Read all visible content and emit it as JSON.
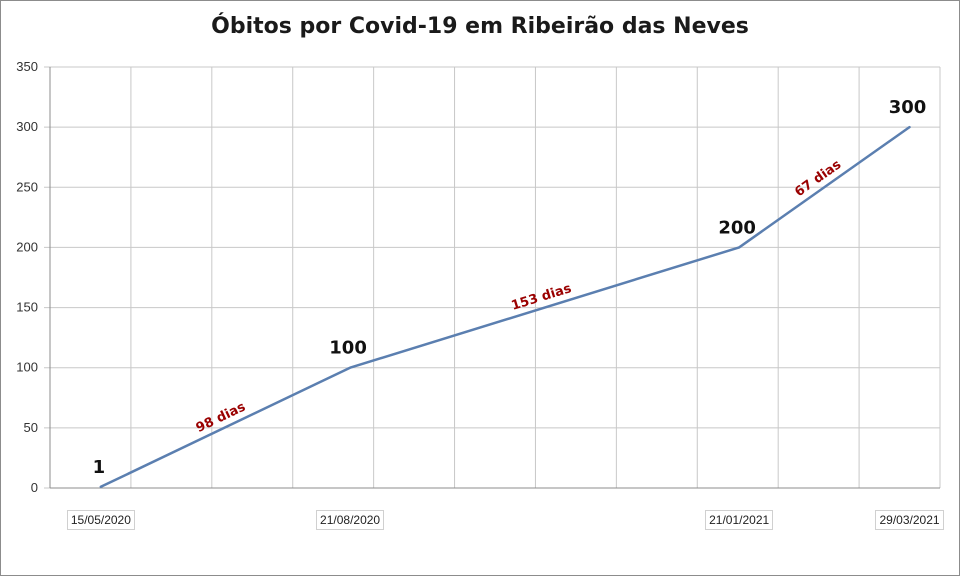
{
  "chart_data": {
    "type": "line",
    "title": "Óbitos por Covid-19 em Ribeirão das Neves",
    "xlabel": "",
    "ylabel": "",
    "ylim": [
      0,
      350
    ],
    "yticks": [
      0,
      50,
      100,
      150,
      200,
      250,
      300,
      350
    ],
    "x": [
      "2020-05-15",
      "2020-08-21",
      "2021-01-21",
      "2021-03-29"
    ],
    "x_tick_labels": [
      "15/05/2020",
      "21/08/2020",
      "21/01/2021",
      "29/03/2021"
    ],
    "series": [
      {
        "values": [
          1,
          100,
          200,
          300
        ],
        "color": "#5b7fb0"
      }
    ],
    "point_labels": [
      "1",
      "100",
      "200",
      "300"
    ],
    "segment_labels": [
      "98 dias",
      "153 dias",
      "67 dias"
    ],
    "grid": true,
    "legend": "none"
  },
  "colors": {
    "line": "#5b7fb0",
    "segment_label": "#9a0000",
    "grid": "#c8c8c8"
  }
}
